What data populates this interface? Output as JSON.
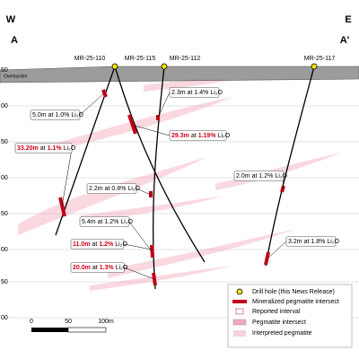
{
  "header": {
    "west": "W",
    "east": "E",
    "section_start": "A",
    "section_end": "A'"
  },
  "elevation_labels": [
    "50",
    "00",
    "50",
    "00",
    "50",
    "00",
    "50",
    "00"
  ],
  "overburden": "Overburden",
  "drill_holes": [
    {
      "name": "MR-25-110"
    },
    {
      "name": "MR-25-115"
    },
    {
      "name": "MR-25-112"
    },
    {
      "name": "MR-25-117"
    }
  ],
  "intercepts": {
    "at": "at",
    "unit": "Li₂O",
    "items": [
      {
        "length": "5.0m",
        "grade": "1.0%",
        "color": "#000000"
      },
      {
        "length": "2.3m",
        "grade": "1.4%",
        "color": "#000000"
      },
      {
        "length": "29.3m",
        "grade": "1.19%",
        "color": "#d0021b"
      },
      {
        "length": "33.20m",
        "grade": "1.1%",
        "color": "#d0021b"
      },
      {
        "length": "2.0m",
        "grade": "1.2%",
        "color": "#000000"
      },
      {
        "length": "2.2m",
        "grade": "0.8%",
        "color": "#000000"
      },
      {
        "length": "5.4m",
        "grade": "1.2%",
        "color": "#000000"
      },
      {
        "length": "11.0m",
        "grade": "1.2%",
        "color": "#d0021b"
      },
      {
        "length": "3.2m",
        "grade": "1.8%",
        "color": "#000000"
      },
      {
        "length": "20.0m",
        "grade": "1.3%",
        "color": "#d0021b"
      }
    ]
  },
  "scale_bar": {
    "labels": [
      "0",
      "50",
      "100m"
    ]
  },
  "legend": {
    "items": [
      "Drill hole (this News Release)",
      "Mineralized pegmatite intersect",
      "Reported interval",
      "Pegmatite intersect",
      "Interpreted pegmatite"
    ]
  }
}
